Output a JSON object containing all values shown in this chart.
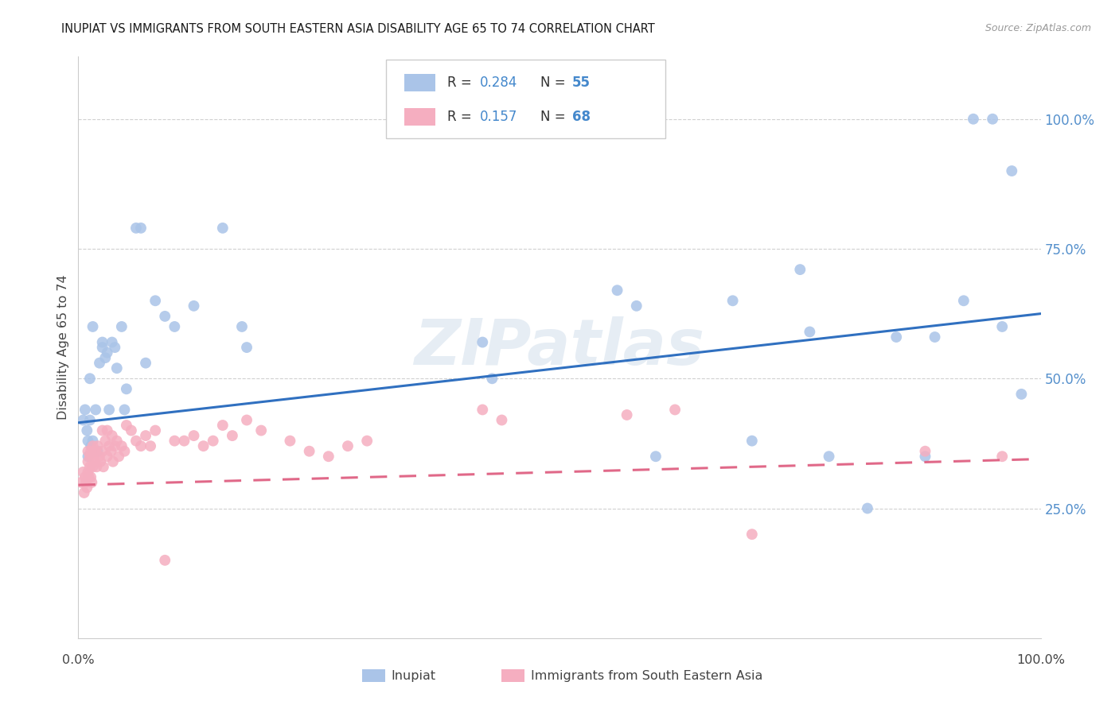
{
  "title": "INUPIAT VS IMMIGRANTS FROM SOUTH EASTERN ASIA DISABILITY AGE 65 TO 74 CORRELATION CHART",
  "source": "Source: ZipAtlas.com",
  "ylabel": "Disability Age 65 to 74",
  "legend_label1": "Inupiat",
  "legend_label2": "Immigrants from South Eastern Asia",
  "R1": 0.284,
  "N1": 55,
  "R2": 0.157,
  "N2": 68,
  "color_blue": "#aac4e8",
  "color_pink": "#f5aec0",
  "color_line_blue": "#3070c0",
  "color_line_pink": "#e06888",
  "watermark": "ZIPatlas",
  "ytick_vals": [
    0.25,
    0.5,
    0.75,
    1.0
  ],
  "ytick_labels": [
    "25.0%",
    "50.0%",
    "75.0%",
    "100.0%"
  ],
  "blue_x": [
    0.005,
    0.007,
    0.009,
    0.01,
    0.01,
    0.012,
    0.012,
    0.013,
    0.015,
    0.015,
    0.016,
    0.018,
    0.02,
    0.022,
    0.025,
    0.025,
    0.028,
    0.03,
    0.032,
    0.035,
    0.038,
    0.04,
    0.045,
    0.048,
    0.05,
    0.06,
    0.065,
    0.07,
    0.08,
    0.09,
    0.1,
    0.12,
    0.15,
    0.17,
    0.175,
    0.42,
    0.43,
    0.56,
    0.58,
    0.6,
    0.68,
    0.7,
    0.75,
    0.76,
    0.78,
    0.82,
    0.85,
    0.88,
    0.89,
    0.92,
    0.93,
    0.95,
    0.96,
    0.97,
    0.98
  ],
  "blue_y": [
    0.42,
    0.44,
    0.4,
    0.38,
    0.35,
    0.5,
    0.42,
    0.37,
    0.6,
    0.38,
    0.36,
    0.44,
    0.36,
    0.53,
    0.56,
    0.57,
    0.54,
    0.55,
    0.44,
    0.57,
    0.56,
    0.52,
    0.6,
    0.44,
    0.48,
    0.79,
    0.79,
    0.53,
    0.65,
    0.62,
    0.6,
    0.64,
    0.79,
    0.6,
    0.56,
    0.57,
    0.5,
    0.67,
    0.64,
    0.35,
    0.65,
    0.38,
    0.71,
    0.59,
    0.35,
    0.25,
    0.58,
    0.35,
    0.58,
    0.65,
    1.0,
    1.0,
    0.6,
    0.9,
    0.47
  ],
  "pink_x": [
    0.003,
    0.005,
    0.006,
    0.007,
    0.008,
    0.009,
    0.01,
    0.01,
    0.01,
    0.011,
    0.012,
    0.012,
    0.013,
    0.013,
    0.014,
    0.015,
    0.015,
    0.016,
    0.017,
    0.018,
    0.019,
    0.02,
    0.022,
    0.023,
    0.025,
    0.025,
    0.026,
    0.028,
    0.03,
    0.03,
    0.032,
    0.034,
    0.035,
    0.036,
    0.038,
    0.04,
    0.042,
    0.045,
    0.048,
    0.05,
    0.055,
    0.06,
    0.065,
    0.07,
    0.075,
    0.08,
    0.09,
    0.1,
    0.11,
    0.12,
    0.13,
    0.14,
    0.15,
    0.16,
    0.175,
    0.19,
    0.22,
    0.24,
    0.26,
    0.28,
    0.3,
    0.42,
    0.44,
    0.57,
    0.62,
    0.7,
    0.88,
    0.96
  ],
  "pink_y": [
    0.3,
    0.32,
    0.28,
    0.31,
    0.3,
    0.29,
    0.36,
    0.34,
    0.32,
    0.31,
    0.35,
    0.33,
    0.36,
    0.31,
    0.3,
    0.37,
    0.33,
    0.35,
    0.34,
    0.36,
    0.33,
    0.37,
    0.35,
    0.34,
    0.4,
    0.36,
    0.33,
    0.38,
    0.4,
    0.35,
    0.37,
    0.36,
    0.39,
    0.34,
    0.37,
    0.38,
    0.35,
    0.37,
    0.36,
    0.41,
    0.4,
    0.38,
    0.37,
    0.39,
    0.37,
    0.4,
    0.15,
    0.38,
    0.38,
    0.39,
    0.37,
    0.38,
    0.41,
    0.39,
    0.42,
    0.4,
    0.38,
    0.36,
    0.35,
    0.37,
    0.38,
    0.44,
    0.42,
    0.43,
    0.44,
    0.2,
    0.36,
    0.35
  ],
  "xlim": [
    0.0,
    1.0
  ],
  "ylim": [
    0.0,
    1.12
  ],
  "blue_line_x0": 0.0,
  "blue_line_y0": 0.415,
  "blue_line_x1": 1.0,
  "blue_line_y1": 0.625,
  "pink_line_x0": 0.0,
  "pink_line_y0": 0.295,
  "pink_line_x1": 1.0,
  "pink_line_y1": 0.345
}
